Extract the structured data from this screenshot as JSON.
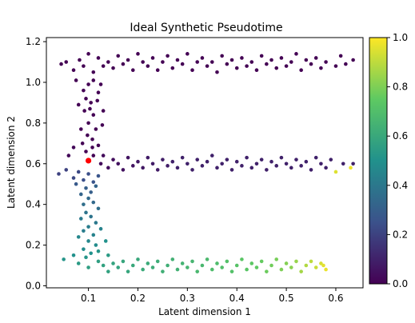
{
  "chart_data": {
    "type": "scatter",
    "title": "Ideal Synthetic Pseudotime",
    "xlabel": "Latent dimension 1",
    "ylabel": "Latent dimension 2",
    "xlim": [
      0.015,
      0.655
    ],
    "ylim": [
      -0.01,
      1.22
    ],
    "x_ticks": [
      0.1,
      0.2,
      0.3,
      0.4,
      0.5,
      0.6
    ],
    "x_tick_labels": [
      "0.1",
      "0.2",
      "0.3",
      "0.4",
      "0.5",
      "0.6"
    ],
    "y_ticks": [
      0.0,
      0.2,
      0.4,
      0.6,
      0.8,
      1.0,
      1.2
    ],
    "y_tick_labels": [
      "0.0",
      "0.2",
      "0.4",
      "0.6",
      "0.8",
      "1.0",
      "1.2"
    ],
    "grid": false,
    "colormap": "viridis",
    "colorbar": {
      "range": [
        0.0,
        1.0
      ],
      "ticks": [
        0.0,
        0.2,
        0.4,
        0.6,
        0.8,
        1.0
      ],
      "tick_labels": [
        "0.0",
        "0.2",
        "0.4",
        "0.6",
        "0.8",
        "1.0"
      ]
    },
    "point_color_scale": [
      "#440154",
      "#3b528b",
      "#21918c",
      "#5ec962",
      "#fde725"
    ],
    "root_point": {
      "x": 0.1,
      "y": 0.615,
      "color": "#ff0000"
    },
    "series": [
      {
        "points": [
          [
            0.045,
            1.09,
            0.0
          ],
          [
            0.055,
            1.1,
            0.0
          ],
          [
            0.07,
            1.06,
            0.0
          ],
          [
            0.082,
            1.11,
            0.0
          ],
          [
            0.09,
            1.08,
            0.0
          ],
          [
            0.1,
            1.14,
            0.0
          ],
          [
            0.11,
            1.05,
            0.0
          ],
          [
            0.12,
            1.12,
            0.0
          ],
          [
            0.13,
            1.08,
            0.0
          ],
          [
            0.14,
            1.1,
            0.0
          ],
          [
            0.15,
            1.07,
            0.0
          ],
          [
            0.16,
            1.13,
            0.0
          ],
          [
            0.17,
            1.09,
            0.0
          ],
          [
            0.18,
            1.11,
            0.0
          ],
          [
            0.19,
            1.06,
            0.0
          ],
          [
            0.2,
            1.14,
            0.0
          ],
          [
            0.21,
            1.1,
            0.0
          ],
          [
            0.22,
            1.08,
            0.0
          ],
          [
            0.23,
            1.12,
            0.0
          ],
          [
            0.24,
            1.06,
            0.0
          ],
          [
            0.25,
            1.1,
            0.0
          ],
          [
            0.26,
            1.13,
            0.0
          ],
          [
            0.27,
            1.07,
            0.0
          ],
          [
            0.28,
            1.11,
            0.0
          ],
          [
            0.29,
            1.09,
            0.0
          ],
          [
            0.3,
            1.14,
            0.0
          ],
          [
            0.31,
            1.06,
            0.0
          ],
          [
            0.32,
            1.1,
            0.0
          ],
          [
            0.33,
            1.12,
            0.0
          ],
          [
            0.34,
            1.08,
            0.0
          ],
          [
            0.35,
            1.1,
            0.0
          ],
          [
            0.36,
            1.05,
            0.0
          ],
          [
            0.37,
            1.13,
            0.0
          ],
          [
            0.38,
            1.09,
            0.0
          ],
          [
            0.39,
            1.11,
            0.0
          ],
          [
            0.4,
            1.07,
            0.0
          ],
          [
            0.41,
            1.12,
            0.0
          ],
          [
            0.42,
            1.08,
            0.0
          ],
          [
            0.43,
            1.1,
            0.0
          ],
          [
            0.44,
            1.06,
            0.0
          ],
          [
            0.45,
            1.13,
            0.0
          ],
          [
            0.46,
            1.09,
            0.0
          ],
          [
            0.47,
            1.11,
            0.0
          ],
          [
            0.48,
            1.07,
            0.0
          ],
          [
            0.49,
            1.12,
            0.0
          ],
          [
            0.5,
            1.08,
            0.0
          ],
          [
            0.51,
            1.1,
            0.0
          ],
          [
            0.52,
            1.14,
            0.0
          ],
          [
            0.53,
            1.06,
            0.0
          ],
          [
            0.54,
            1.11,
            0.0
          ],
          [
            0.55,
            1.09,
            0.0
          ],
          [
            0.56,
            1.12,
            0.0
          ],
          [
            0.57,
            1.07,
            0.0
          ],
          [
            0.58,
            1.1,
            0.0
          ],
          [
            0.6,
            1.08,
            0.0
          ],
          [
            0.61,
            1.13,
            0.0
          ],
          [
            0.62,
            1.09,
            0.0
          ],
          [
            0.635,
            1.11,
            0.0
          ],
          [
            0.075,
            1.01,
            0.0
          ],
          [
            0.09,
            0.96,
            0.0
          ],
          [
            0.1,
            0.99,
            0.0
          ],
          [
            0.11,
            1.01,
            0.0
          ],
          [
            0.095,
            0.92,
            0.0
          ],
          [
            0.105,
            0.9,
            0.0
          ],
          [
            0.12,
            0.95,
            0.0
          ],
          [
            0.08,
            0.89,
            0.0
          ],
          [
            0.092,
            0.86,
            0.0
          ],
          [
            0.11,
            0.84,
            0.0
          ],
          [
            0.1,
            0.8,
            0.0
          ],
          [
            0.115,
            0.77,
            0.0
          ],
          [
            0.098,
            0.74,
            0.0
          ],
          [
            0.108,
            0.72,
            0.0
          ],
          [
            0.088,
            0.7,
            0.0
          ],
          [
            0.12,
            0.69,
            0.0
          ],
          [
            0.095,
            0.66,
            0.0
          ],
          [
            0.11,
            0.64,
            0.0
          ],
          [
            0.128,
            0.79,
            0.0
          ],
          [
            0.085,
            0.77,
            0.0
          ],
          [
            0.103,
            0.87,
            0.0
          ],
          [
            0.118,
            0.91,
            0.0
          ],
          [
            0.125,
            0.99,
            0.0
          ],
          [
            0.13,
            0.86,
            0.0
          ],
          [
            0.108,
            0.68,
            0.0
          ],
          [
            0.06,
            0.64,
            0.02
          ],
          [
            0.07,
            0.68,
            0.02
          ],
          [
            0.125,
            0.6,
            0.03
          ],
          [
            0.13,
            0.64,
            0.03
          ],
          [
            0.14,
            0.58,
            0.04
          ],
          [
            0.15,
            0.62,
            0.04
          ],
          [
            0.16,
            0.6,
            0.05
          ],
          [
            0.17,
            0.57,
            0.05
          ],
          [
            0.18,
            0.63,
            0.06
          ],
          [
            0.19,
            0.59,
            0.06
          ],
          [
            0.2,
            0.61,
            0.07
          ],
          [
            0.21,
            0.58,
            0.07
          ],
          [
            0.22,
            0.63,
            0.08
          ],
          [
            0.23,
            0.6,
            0.08
          ],
          [
            0.24,
            0.57,
            0.08
          ],
          [
            0.25,
            0.62,
            0.09
          ],
          [
            0.26,
            0.59,
            0.09
          ],
          [
            0.27,
            0.61,
            0.1
          ],
          [
            0.28,
            0.58,
            0.1
          ],
          [
            0.29,
            0.63,
            0.1
          ],
          [
            0.3,
            0.6,
            0.1
          ],
          [
            0.31,
            0.57,
            0.1
          ],
          [
            0.32,
            0.62,
            0.1
          ],
          [
            0.33,
            0.59,
            0.1
          ],
          [
            0.34,
            0.61,
            0.1
          ],
          [
            0.35,
            0.64,
            0.1
          ],
          [
            0.36,
            0.58,
            0.1
          ],
          [
            0.37,
            0.6,
            0.1
          ],
          [
            0.38,
            0.62,
            0.1
          ],
          [
            0.39,
            0.57,
            0.1
          ],
          [
            0.4,
            0.61,
            0.1
          ],
          [
            0.41,
            0.59,
            0.1
          ],
          [
            0.42,
            0.63,
            0.1
          ],
          [
            0.43,
            0.58,
            0.1
          ],
          [
            0.44,
            0.6,
            0.1
          ],
          [
            0.45,
            0.62,
            0.1
          ],
          [
            0.46,
            0.57,
            0.1
          ],
          [
            0.47,
            0.61,
            0.1
          ],
          [
            0.48,
            0.59,
            0.1
          ],
          [
            0.49,
            0.63,
            0.1
          ],
          [
            0.5,
            0.6,
            0.1
          ],
          [
            0.51,
            0.58,
            0.1
          ],
          [
            0.52,
            0.62,
            0.1
          ],
          [
            0.53,
            0.59,
            0.1
          ],
          [
            0.54,
            0.61,
            0.1
          ],
          [
            0.55,
            0.57,
            0.1
          ],
          [
            0.56,
            0.63,
            0.1
          ],
          [
            0.57,
            0.6,
            0.1
          ],
          [
            0.58,
            0.58,
            0.1
          ],
          [
            0.59,
            0.62,
            0.1
          ],
          [
            0.6,
            0.56,
            0.95
          ],
          [
            0.615,
            0.6,
            0.1
          ],
          [
            0.63,
            0.58,
            0.98
          ],
          [
            0.635,
            0.6,
            0.1
          ],
          [
            0.04,
            0.55,
            0.2
          ],
          [
            0.055,
            0.57,
            0.2
          ],
          [
            0.07,
            0.53,
            0.22
          ],
          [
            0.08,
            0.56,
            0.22
          ],
          [
            0.09,
            0.52,
            0.24
          ],
          [
            0.1,
            0.55,
            0.24
          ],
          [
            0.11,
            0.51,
            0.26
          ],
          [
            0.12,
            0.54,
            0.26
          ],
          [
            0.075,
            0.5,
            0.28
          ],
          [
            0.095,
            0.48,
            0.3
          ],
          [
            0.105,
            0.46,
            0.3
          ],
          [
            0.115,
            0.49,
            0.32
          ],
          [
            0.085,
            0.45,
            0.32
          ],
          [
            0.1,
            0.43,
            0.34
          ],
          [
            0.11,
            0.41,
            0.34
          ],
          [
            0.09,
            0.4,
            0.36
          ],
          [
            0.12,
            0.38,
            0.36
          ],
          [
            0.095,
            0.36,
            0.38
          ],
          [
            0.105,
            0.34,
            0.38
          ],
          [
            0.085,
            0.33,
            0.4
          ],
          [
            0.115,
            0.31,
            0.4
          ],
          [
            0.1,
            0.29,
            0.42
          ],
          [
            0.09,
            0.27,
            0.42
          ],
          [
            0.11,
            0.25,
            0.44
          ],
          [
            0.125,
            0.28,
            0.44
          ],
          [
            0.08,
            0.24,
            0.46
          ],
          [
            0.1,
            0.22,
            0.46
          ],
          [
            0.115,
            0.2,
            0.48
          ],
          [
            0.09,
            0.18,
            0.48
          ],
          [
            0.105,
            0.16,
            0.5
          ],
          [
            0.07,
            0.15,
            0.5
          ],
          [
            0.095,
            0.14,
            0.52
          ],
          [
            0.12,
            0.17,
            0.52
          ],
          [
            0.135,
            0.22,
            0.5
          ],
          [
            0.14,
            0.15,
            0.54
          ],
          [
            0.05,
            0.13,
            0.52
          ],
          [
            0.08,
            0.11,
            0.54
          ],
          [
            0.1,
            0.09,
            0.56
          ],
          [
            0.12,
            0.12,
            0.56
          ],
          [
            0.13,
            0.1,
            0.57
          ],
          [
            0.14,
            0.07,
            0.57
          ],
          [
            0.15,
            0.11,
            0.58
          ],
          [
            0.16,
            0.09,
            0.58
          ],
          [
            0.17,
            0.12,
            0.59
          ],
          [
            0.18,
            0.07,
            0.59
          ],
          [
            0.19,
            0.1,
            0.6
          ],
          [
            0.2,
            0.13,
            0.6
          ],
          [
            0.21,
            0.08,
            0.61
          ],
          [
            0.22,
            0.11,
            0.61
          ],
          [
            0.23,
            0.09,
            0.62
          ],
          [
            0.24,
            0.12,
            0.62
          ],
          [
            0.25,
            0.07,
            0.63
          ],
          [
            0.26,
            0.1,
            0.63
          ],
          [
            0.27,
            0.13,
            0.64
          ],
          [
            0.28,
            0.08,
            0.64
          ],
          [
            0.29,
            0.11,
            0.65
          ],
          [
            0.3,
            0.09,
            0.66
          ],
          [
            0.31,
            0.12,
            0.66
          ],
          [
            0.32,
            0.07,
            0.67
          ],
          [
            0.33,
            0.1,
            0.67
          ],
          [
            0.34,
            0.13,
            0.68
          ],
          [
            0.35,
            0.08,
            0.69
          ],
          [
            0.36,
            0.11,
            0.69
          ],
          [
            0.37,
            0.09,
            0.7
          ],
          [
            0.38,
            0.12,
            0.71
          ],
          [
            0.39,
            0.07,
            0.71
          ],
          [
            0.4,
            0.1,
            0.72
          ],
          [
            0.41,
            0.13,
            0.73
          ],
          [
            0.42,
            0.08,
            0.73
          ],
          [
            0.43,
            0.11,
            0.74
          ],
          [
            0.44,
            0.09,
            0.75
          ],
          [
            0.45,
            0.12,
            0.76
          ],
          [
            0.46,
            0.07,
            0.77
          ],
          [
            0.47,
            0.1,
            0.78
          ],
          [
            0.48,
            0.13,
            0.79
          ],
          [
            0.49,
            0.08,
            0.8
          ],
          [
            0.5,
            0.11,
            0.81
          ],
          [
            0.51,
            0.09,
            0.82
          ],
          [
            0.52,
            0.12,
            0.84
          ],
          [
            0.53,
            0.07,
            0.86
          ],
          [
            0.54,
            0.1,
            0.88
          ],
          [
            0.55,
            0.12,
            0.9
          ],
          [
            0.56,
            0.09,
            0.92
          ],
          [
            0.57,
            0.11,
            0.94
          ],
          [
            0.575,
            0.1,
            0.96
          ],
          [
            0.58,
            0.08,
            0.97
          ]
        ]
      }
    ]
  }
}
